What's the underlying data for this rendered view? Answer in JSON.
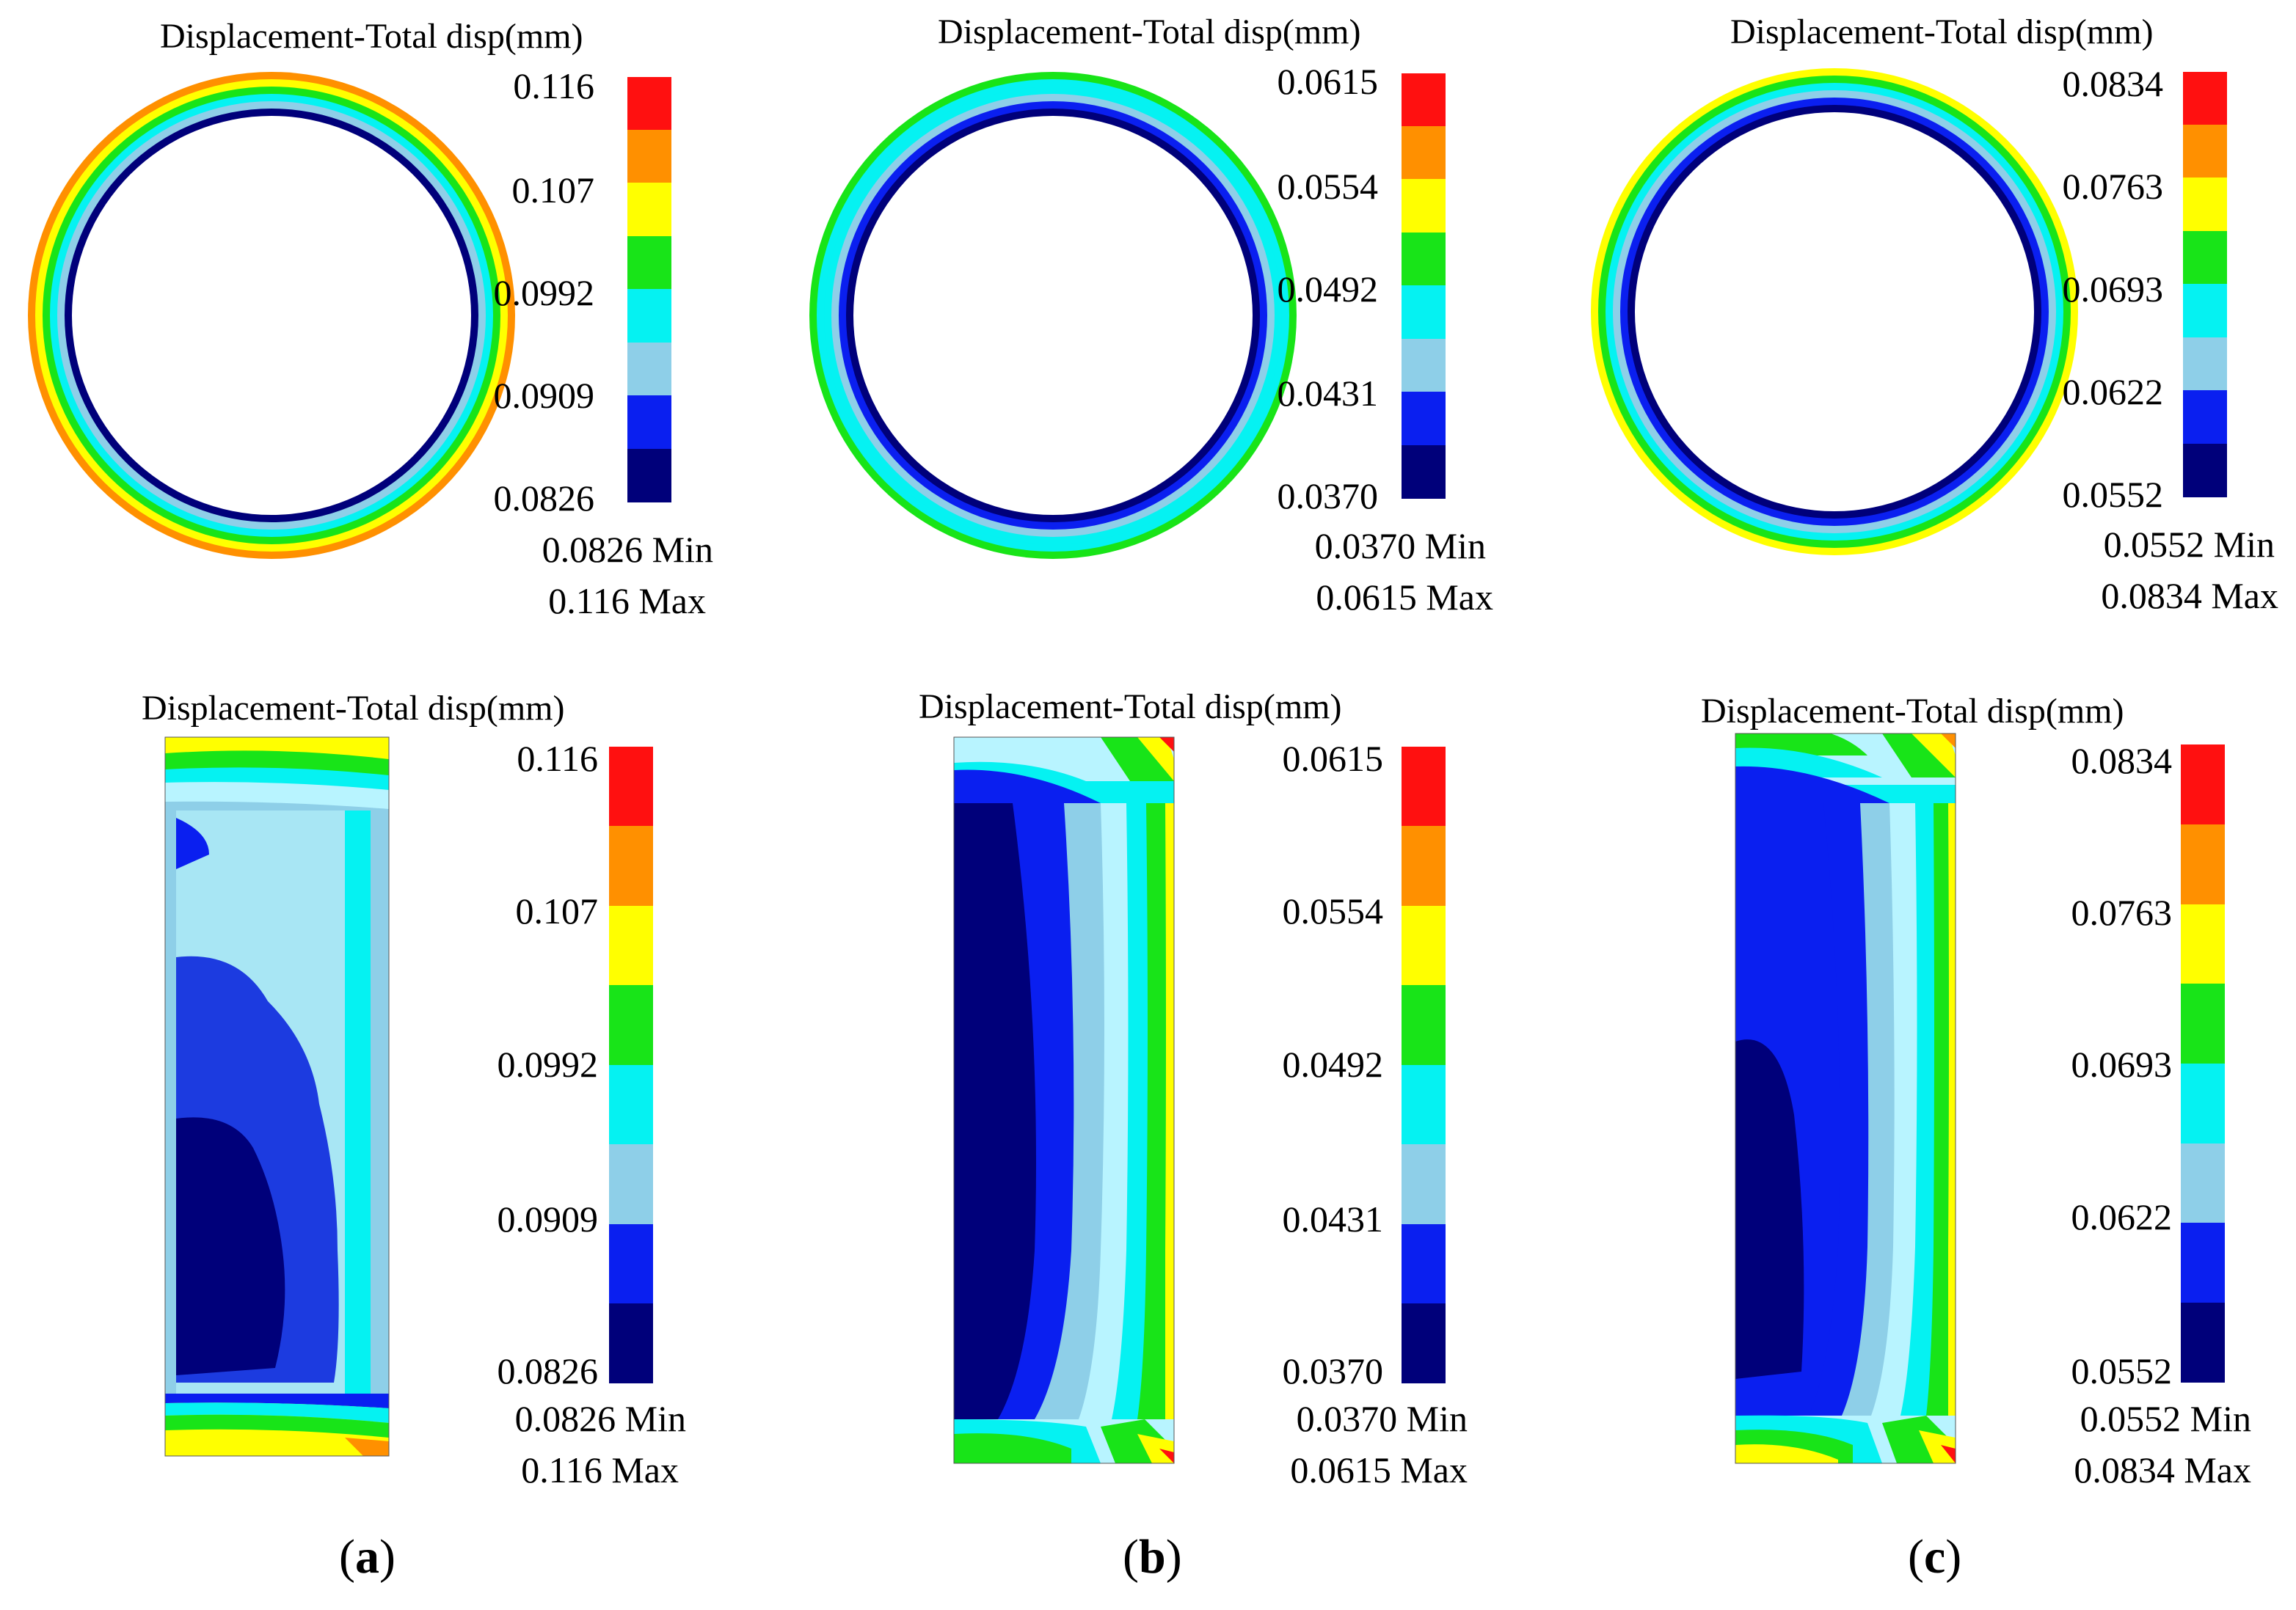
{
  "colors": {
    "band1": "#00007a",
    "band2": "#0a1ff0",
    "band3": "#8ecfe8",
    "band4": "#05f2f2",
    "band5": "#18e418",
    "band6": "#ffff00",
    "band7": "#ff9000",
    "band8": "#ff1010",
    "mid_blue": "#1c3be0",
    "light_cyan": "#8ff0ff",
    "pale": "#b8f4ff",
    "edge": "#b07030"
  },
  "panels": [
    {
      "label_letter": "a",
      "top": {
        "title": "Displacement-Total disp(mm)",
        "ticks": [
          "0.116",
          "0.107",
          "0.0992",
          "0.0909",
          "0.0826"
        ],
        "min_text": "0.0826 Min",
        "max_text": "0.116 Max"
      },
      "bottom": {
        "title": "Displacement-Total disp(mm)",
        "ticks": [
          "0.116",
          "0.107",
          "0.0992",
          "0.0909",
          "0.0826"
        ],
        "min_text": "0.0826 Min",
        "max_text": "0.116 Max"
      },
      "ring_outer_bands": [
        "band1",
        "band3",
        "band4",
        "band5",
        "band6",
        "band7"
      ]
    },
    {
      "label_letter": "b",
      "top": {
        "title": "Displacement-Total disp(mm)",
        "ticks": [
          "0.0615",
          "0.0554",
          "0.0492",
          "0.0431",
          "0.0370"
        ],
        "min_text": "0.0370 Min",
        "max_text": "0.0615 Max"
      },
      "bottom": {
        "title": "Displacement-Total disp(mm)",
        "ticks": [
          "0.0615",
          "0.0554",
          "0.0492",
          "0.0431",
          "0.0370"
        ],
        "min_text": "0.0370 Min",
        "max_text": "0.0615 Max"
      },
      "ring_outer_bands": [
        "band1",
        "band2",
        "band3",
        "band4",
        "band4",
        "band5"
      ]
    },
    {
      "label_letter": "c",
      "top": {
        "title": "Displacement-Total disp(mm)",
        "ticks": [
          "0.0834",
          "0.0763",
          "0.0693",
          "0.0622",
          "0.0552"
        ],
        "min_text": "0.0552 Min",
        "max_text": "0.0834 Max"
      },
      "bottom": {
        "title": "Displacement-Total disp(mm)",
        "ticks": [
          "0.0834",
          "0.0763",
          "0.0693",
          "0.0622",
          "0.0552"
        ],
        "min_text": "0.0552 Min",
        "max_text": "0.0834 Max"
      },
      "ring_outer_bands": [
        "band1",
        "band2",
        "band3",
        "band4",
        "band5",
        "band6"
      ]
    }
  ]
}
